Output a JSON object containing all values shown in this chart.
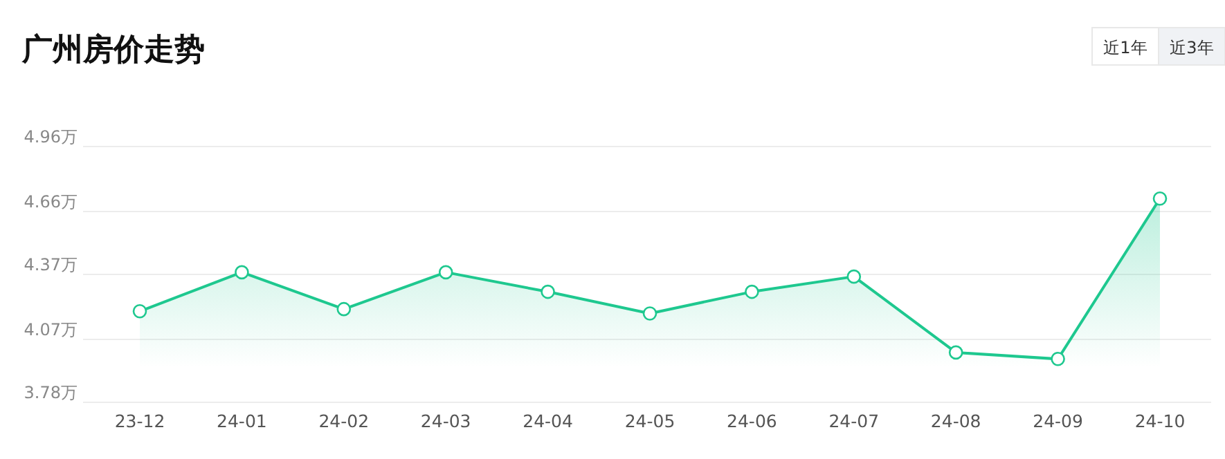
{
  "chart_data": {
    "type": "area",
    "title": "广州房价走势",
    "annotations": [
      "近1年",
      "近3年"
    ],
    "categories": [
      "23-12",
      "24-01",
      "24-02",
      "24-03",
      "24-04",
      "24-05",
      "24-06",
      "24-07",
      "24-08",
      "24-09",
      "24-10"
    ],
    "series": [
      {
        "color": "#1ec88f",
        "values": [
          4.2,
          4.38,
          4.21,
          4.38,
          4.29,
          4.19,
          4.29,
          4.36,
          4.01,
          3.98,
          4.72
        ]
      }
    ],
    "ylim": [
      3.78,
      4.96
    ],
    "yticks": [
      {
        "value": 3.78,
        "label": "3.78万"
      },
      {
        "value": 4.07,
        "label": "4.07万"
      },
      {
        "value": 4.37,
        "label": "4.37万"
      },
      {
        "value": 4.66,
        "label": "4.66万"
      },
      {
        "value": 4.96,
        "label": "4.96万"
      }
    ],
    "grid": "y",
    "marker": "circle",
    "line_style": "solid"
  }
}
